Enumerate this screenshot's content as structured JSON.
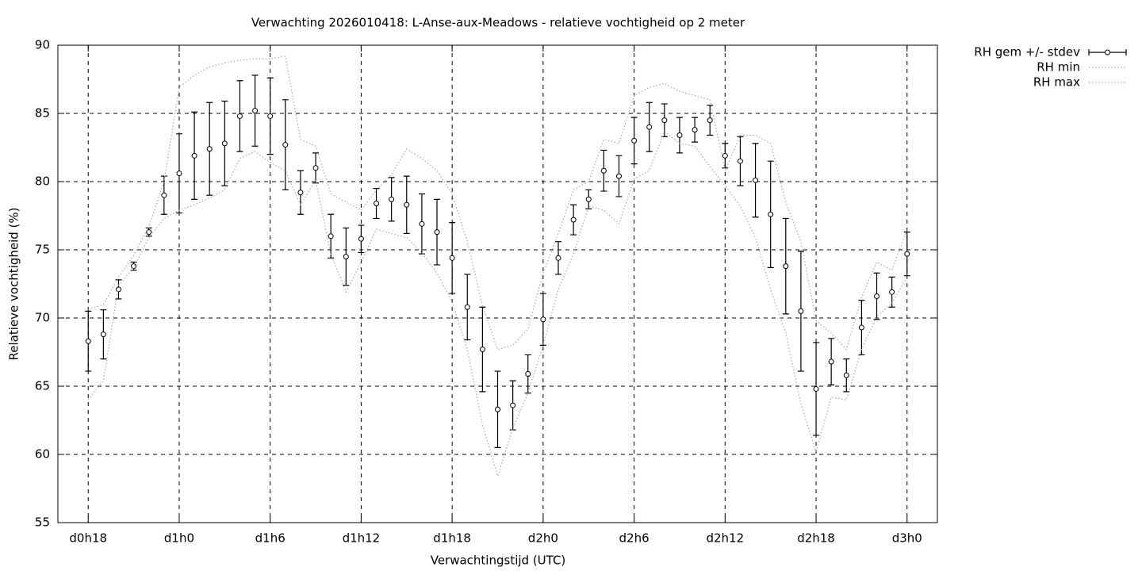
{
  "chart_data": {
    "type": "errorbar",
    "title": "Verwachting 2026010418: L-Anse-aux-Meadows - relatieve vochtigheid op 2 meter",
    "xlabel": "Verwachtingstijd (UTC)",
    "ylabel": "Relatieve vochtigheid (%)",
    "x": [
      18,
      19,
      20,
      21,
      22,
      23,
      24,
      25,
      26,
      27,
      28,
      29,
      30,
      31,
      32,
      33,
      34,
      35,
      36,
      37,
      38,
      39,
      40,
      41,
      42,
      43,
      44,
      45,
      46,
      47,
      48,
      49,
      50,
      51,
      52,
      53,
      54,
      55,
      56,
      57,
      58,
      59,
      60,
      61,
      62,
      63,
      64,
      65,
      66,
      67,
      68,
      69,
      70,
      71,
      72
    ],
    "xlim": [
      16,
      74
    ],
    "xticks": [
      {
        "value": 18,
        "label": "d0h18"
      },
      {
        "value": 24,
        "label": "d1h0"
      },
      {
        "value": 30,
        "label": "d1h6"
      },
      {
        "value": 36,
        "label": "d1h12"
      },
      {
        "value": 42,
        "label": "d1h18"
      },
      {
        "value": 48,
        "label": "d2h0"
      },
      {
        "value": 54,
        "label": "d2h6"
      },
      {
        "value": 60,
        "label": "d2h12"
      },
      {
        "value": 66,
        "label": "d2h18"
      },
      {
        "value": 72,
        "label": "d3h0"
      }
    ],
    "ylim": [
      55,
      90
    ],
    "yticks": [
      55,
      60,
      65,
      70,
      75,
      80,
      85,
      90
    ],
    "grid": true,
    "legend": "outside-right",
    "series": [
      {
        "name": "RH gem +/- stdev",
        "color": "#000000",
        "style": "errorbar",
        "values": [
          68.3,
          68.8,
          72.1,
          73.8,
          76.3,
          79.0,
          80.6,
          81.9,
          82.4,
          82.8,
          84.8,
          85.2,
          84.8,
          82.7,
          79.2,
          81.0,
          76.0,
          74.5,
          75.8,
          78.4,
          78.7,
          78.3,
          76.9,
          76.3,
          74.4,
          70.8,
          67.7,
          63.3,
          63.6,
          65.9,
          69.9,
          74.4,
          77.2,
          78.7,
          80.8,
          80.4,
          83.0,
          84.0,
          84.5,
          83.4,
          83.8,
          84.5,
          81.9,
          81.5,
          80.1,
          77.6,
          73.8,
          70.5,
          64.8,
          66.8,
          65.8,
          69.3,
          71.6,
          71.9,
          74.7
        ],
        "errors": [
          2.2,
          1.8,
          0.7,
          0.3,
          0.3,
          1.4,
          2.9,
          3.2,
          3.4,
          3.1,
          2.6,
          2.6,
          2.8,
          3.3,
          1.6,
          1.1,
          1.6,
          2.1,
          1.0,
          1.1,
          1.6,
          2.1,
          2.2,
          2.4,
          2.6,
          2.4,
          3.1,
          2.8,
          1.8,
          1.4,
          1.9,
          1.2,
          1.1,
          0.7,
          1.5,
          1.5,
          1.7,
          1.8,
          1.2,
          1.3,
          0.9,
          1.1,
          0.9,
          1.8,
          2.7,
          3.9,
          3.5,
          4.4,
          3.4,
          1.7,
          1.2,
          2.0,
          1.7,
          1.1,
          1.6
        ]
      },
      {
        "name": "RH min",
        "color": "#aaaaaa",
        "style": "dotted",
        "values": [
          64.0,
          65.4,
          72.4,
          73.7,
          75.9,
          77.3,
          77.9,
          78.3,
          78.8,
          79.4,
          81.7,
          82.2,
          81.4,
          80.8,
          78.3,
          80.1,
          74.7,
          71.9,
          74.1,
          76.5,
          76.2,
          75.9,
          74.8,
          73.3,
          71.2,
          67.7,
          62.2,
          58.4,
          61.9,
          64.5,
          68.0,
          72.1,
          74.7,
          78.2,
          77.9,
          76.9,
          80.2,
          80.8,
          83.7,
          82.8,
          82.6,
          81.1,
          79.7,
          78.2,
          75.9,
          72.1,
          68.9,
          63.7,
          60.2,
          64.2,
          64.0,
          67.7,
          70.1,
          71.1,
          73.0
        ]
      },
      {
        "name": "RH max",
        "color": "#aaaaaa",
        "style": "dotted",
        "values": [
          70.6,
          71.0,
          73.0,
          74.6,
          76.7,
          80.0,
          86.9,
          87.8,
          88.4,
          88.7,
          88.9,
          89.0,
          89.0,
          89.2,
          83.1,
          82.6,
          79.1,
          78.5,
          77.9,
          79.4,
          80.5,
          82.4,
          81.7,
          80.8,
          79.1,
          75.6,
          70.9,
          67.7,
          68.0,
          69.2,
          73.3,
          76.2,
          79.4,
          80.0,
          83.1,
          82.8,
          86.3,
          86.9,
          87.2,
          86.6,
          86.3,
          86.0,
          80.8,
          83.4,
          83.4,
          82.8,
          78.5,
          75.6,
          69.8,
          68.9,
          67.7,
          71.5,
          74.1,
          73.5,
          76.5
        ]
      }
    ]
  }
}
